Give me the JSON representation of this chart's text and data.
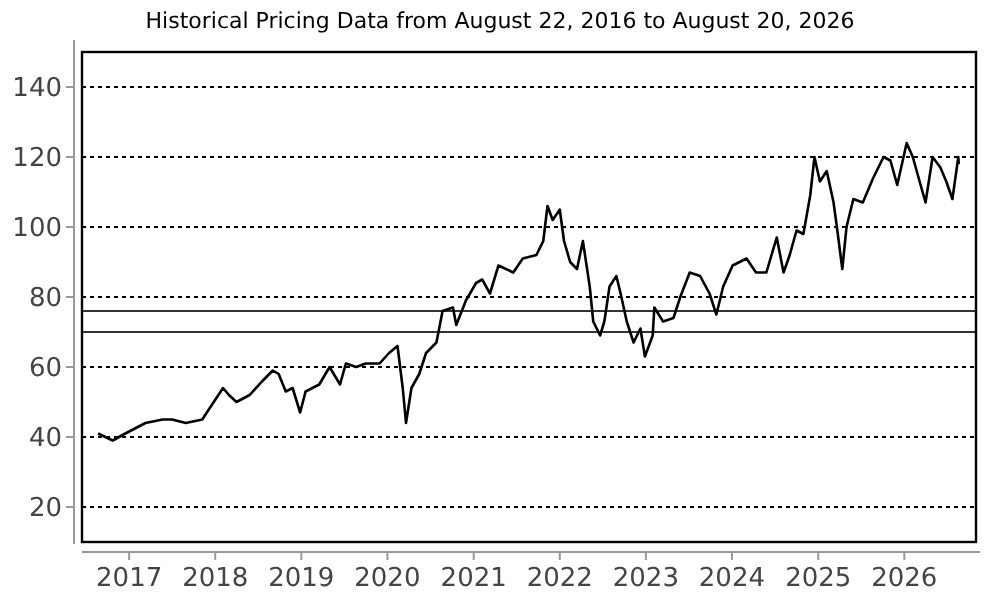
{
  "chart_data": {
    "type": "line",
    "title": "Historical Pricing Data from August 22, 2016 to August 20, 2026",
    "xlim": [
      "2016-06-15",
      "2026-11-01"
    ],
    "xticks": [
      {
        "value": "2017-01-01",
        "label": "2017"
      },
      {
        "value": "2018-01-01",
        "label": "2018"
      },
      {
        "value": "2019-01-01",
        "label": "2019"
      },
      {
        "value": "2020-01-01",
        "label": "2020"
      },
      {
        "value": "2021-01-01",
        "label": "2021"
      },
      {
        "value": "2022-01-01",
        "label": "2022"
      },
      {
        "value": "2023-01-01",
        "label": "2023"
      },
      {
        "value": "2024-01-01",
        "label": "2024"
      },
      {
        "value": "2025-01-01",
        "label": "2025"
      },
      {
        "value": "2026-01-01",
        "label": "2026"
      }
    ],
    "ylim": [
      10,
      150
    ],
    "yticks": [
      20,
      40,
      60,
      80,
      100,
      120,
      140
    ],
    "grid": "y",
    "marker": "none",
    "line_style": "solid",
    "ref_lines": [
      {
        "axis": "y",
        "value": 76,
        "color": "#333333"
      },
      {
        "axis": "y",
        "value": 70,
        "color": "#333333"
      }
    ],
    "x": [
      "2016-08-22",
      "2016-10-23",
      "2016-12-16",
      "2017-03-11",
      "2017-05-23",
      "2017-07-02",
      "2017-08-29",
      "2017-11-07",
      "2017-12-06",
      "2018-02-03",
      "2018-02-28",
      "2018-04-01",
      "2018-05-27",
      "2018-07-20",
      "2018-09-02",
      "2018-09-27",
      "2018-10-27",
      "2018-11-25",
      "2018-12-27",
      "2019-01-19",
      "2019-03-18",
      "2019-05-01",
      "2019-06-14",
      "2019-07-09",
      "2019-08-22",
      "2019-10-01",
      "2019-11-29",
      "2020-01-08",
      "2020-02-13",
      "2020-03-06",
      "2020-03-20",
      "2020-04-12",
      "2020-05-15",
      "2020-06-13",
      "2020-07-27",
      "2020-08-22",
      "2020-10-05",
      "2020-10-19",
      "2020-11-29",
      "2021-01-11",
      "2021-02-06",
      "2021-03-11",
      "2021-04-16",
      "2021-06-18",
      "2021-07-28",
      "2021-09-24",
      "2021-10-23",
      "2021-11-10",
      "2021-12-02",
      "2022-01-01",
      "2022-01-19",
      "2022-02-14",
      "2022-03-15",
      "2022-04-09",
      "2022-05-08",
      "2022-05-23",
      "2022-06-21",
      "2022-07-09",
      "2022-07-31",
      "2022-08-29",
      "2022-09-16",
      "2022-10-12",
      "2022-11-10",
      "2022-12-09",
      "2022-12-28",
      "2023-01-30",
      "2023-02-06",
      "2023-03-15",
      "2023-04-28",
      "2023-05-27",
      "2023-07-06",
      "2023-08-19",
      "2023-09-28",
      "2023-10-27",
      "2023-11-25",
      "2024-01-04",
      "2024-03-03",
      "2024-04-12",
      "2024-05-26",
      "2024-07-09",
      "2024-08-07",
      "2024-09-02",
      "2024-10-01",
      "2024-10-30",
      "2024-11-28",
      "2024-12-16",
      "2025-01-08",
      "2025-02-06",
      "2025-03-07",
      "2025-03-25",
      "2025-04-13",
      "2025-05-01",
      "2025-05-30",
      "2025-07-09",
      "2025-08-22",
      "2025-10-05",
      "2025-11-03",
      "2025-12-02",
      "2026-01-11",
      "2026-02-06",
      "2026-03-07",
      "2026-04-01",
      "2026-05-01",
      "2026-06-03",
      "2026-06-28",
      "2026-07-24",
      "2026-08-18",
      "2026-08-20"
    ],
    "series": [
      {
        "color": "#000000",
        "values": [
          41,
          39,
          41,
          44,
          45,
          45,
          44,
          45,
          48,
          54,
          52,
          50,
          52,
          56,
          59,
          58,
          53,
          54,
          47,
          53,
          55,
          60,
          55,
          61,
          60,
          61,
          61,
          64,
          66,
          54,
          44,
          54,
          58,
          64,
          67,
          76,
          77,
          72,
          79,
          84,
          85,
          81,
          89,
          87,
          91,
          92,
          96,
          106,
          102,
          105,
          96,
          90,
          88,
          96,
          83,
          73,
          69,
          73,
          83,
          86,
          81,
          73,
          67,
          71,
          63,
          69,
          77,
          73,
          74,
          80,
          87,
          86,
          81,
          75,
          83,
          89,
          91,
          87,
          87,
          97,
          87,
          92,
          99,
          98,
          109,
          120,
          113,
          116,
          107,
          98,
          88,
          100,
          108,
          107,
          114,
          120,
          119,
          112,
          124,
          120,
          113,
          107,
          120,
          117,
          113,
          108,
          120,
          118
        ]
      }
    ]
  }
}
